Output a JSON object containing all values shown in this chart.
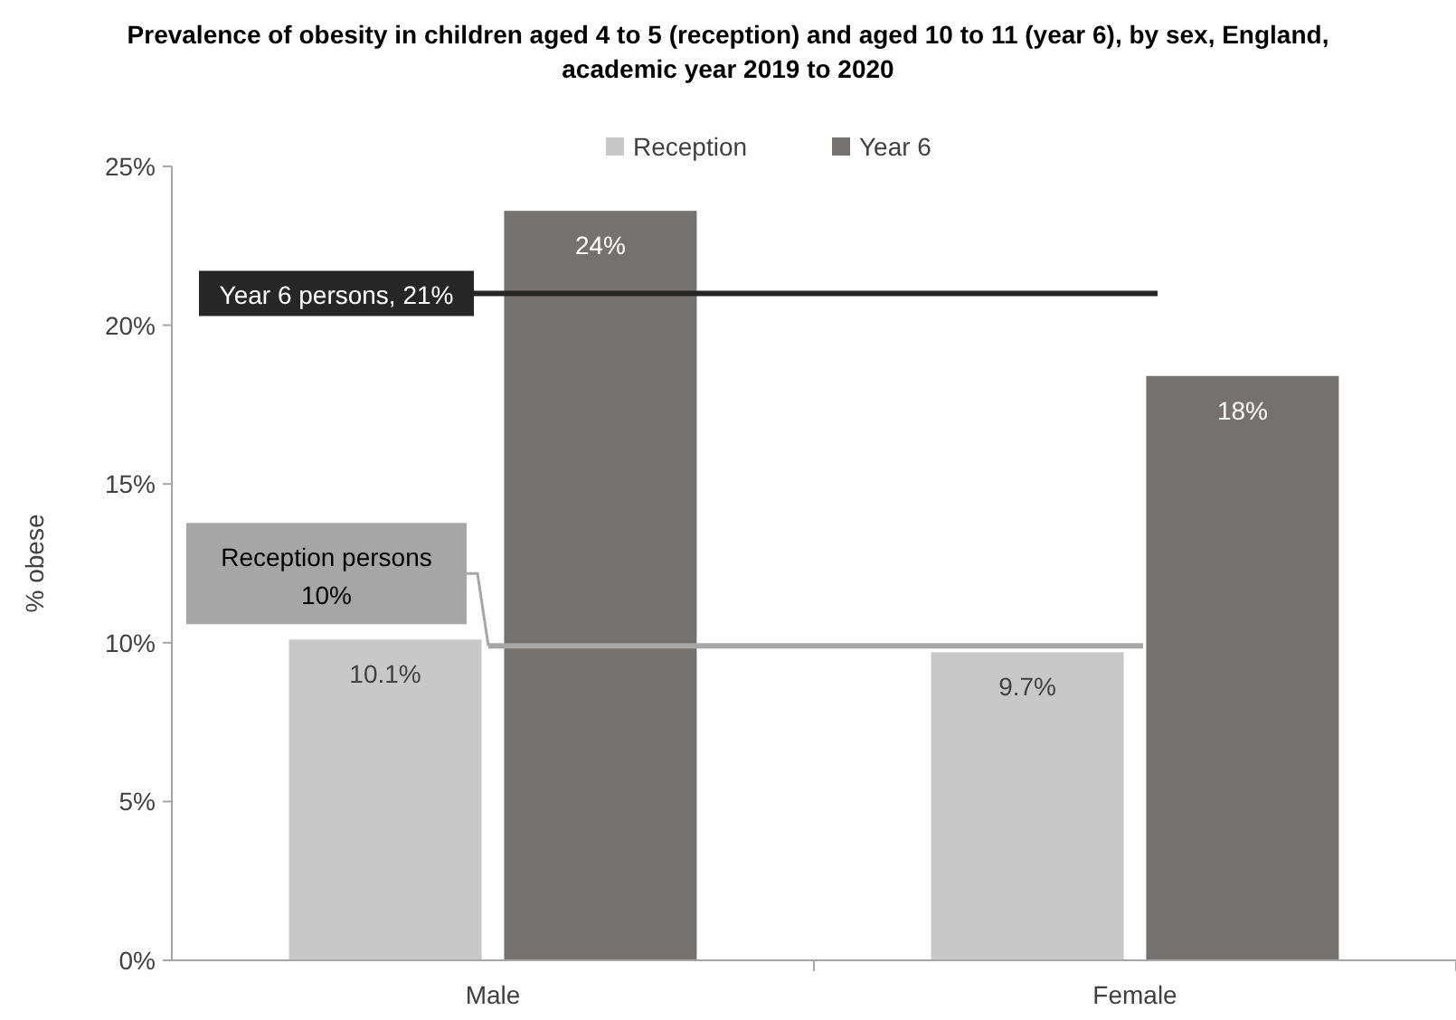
{
  "chart_data": {
    "type": "bar",
    "title": "Prevalence of obesity in children aged 4 to 5 (reception) and aged 10 to 11 (year 6), by sex, England, academic year 2019 to 2020",
    "ylabel": "% obese",
    "categories": [
      "Male",
      "Female"
    ],
    "series": [
      {
        "name": "Reception",
        "color": "#c8c8c8",
        "values": [
          10.1,
          9.7
        ],
        "value_labels": [
          "10.1%",
          "9.7%"
        ]
      },
      {
        "name": "Year 6",
        "color": "#767171",
        "values": [
          23.6,
          18.4
        ],
        "value_labels": [
          "24%",
          "18%"
        ]
      }
    ],
    "ylim": [
      0,
      25
    ],
    "yticks": [
      {
        "value": 0,
        "label": "0%"
      },
      {
        "value": 5,
        "label": "5%"
      },
      {
        "value": 10,
        "label": "10%"
      },
      {
        "value": 15,
        "label": "15%"
      },
      {
        "value": 20,
        "label": "20%"
      },
      {
        "value": 25,
        "label": "25%"
      }
    ],
    "ref_lines": [
      {
        "axis": "y",
        "value": 21,
        "label": "Year 6 persons, 21%",
        "color": "#262626"
      },
      {
        "axis": "y",
        "value": 9.9,
        "label": "Reception persons\n10%",
        "color": "#a6a6a6"
      }
    ],
    "legend": "top",
    "grid": false
  }
}
